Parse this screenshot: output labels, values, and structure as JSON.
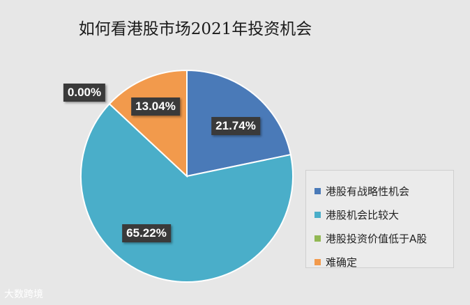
{
  "chart_data": {
    "type": "pie",
    "title": "如何看港股市场2021年投资机会",
    "categories": [
      "港股有战略性机会",
      "港股机会比较大",
      "港股投资价值低于A股",
      "难确定"
    ],
    "values": [
      21.74,
      65.22,
      0.0,
      13.04
    ],
    "labels": [
      "21.74%",
      "65.22%",
      "0.00%",
      "13.04%"
    ],
    "colors": [
      "#4a7ab8",
      "#4aaec9",
      "#92b854",
      "#f29a4c"
    ],
    "legend_position": "right"
  },
  "watermark": "大数跨境"
}
